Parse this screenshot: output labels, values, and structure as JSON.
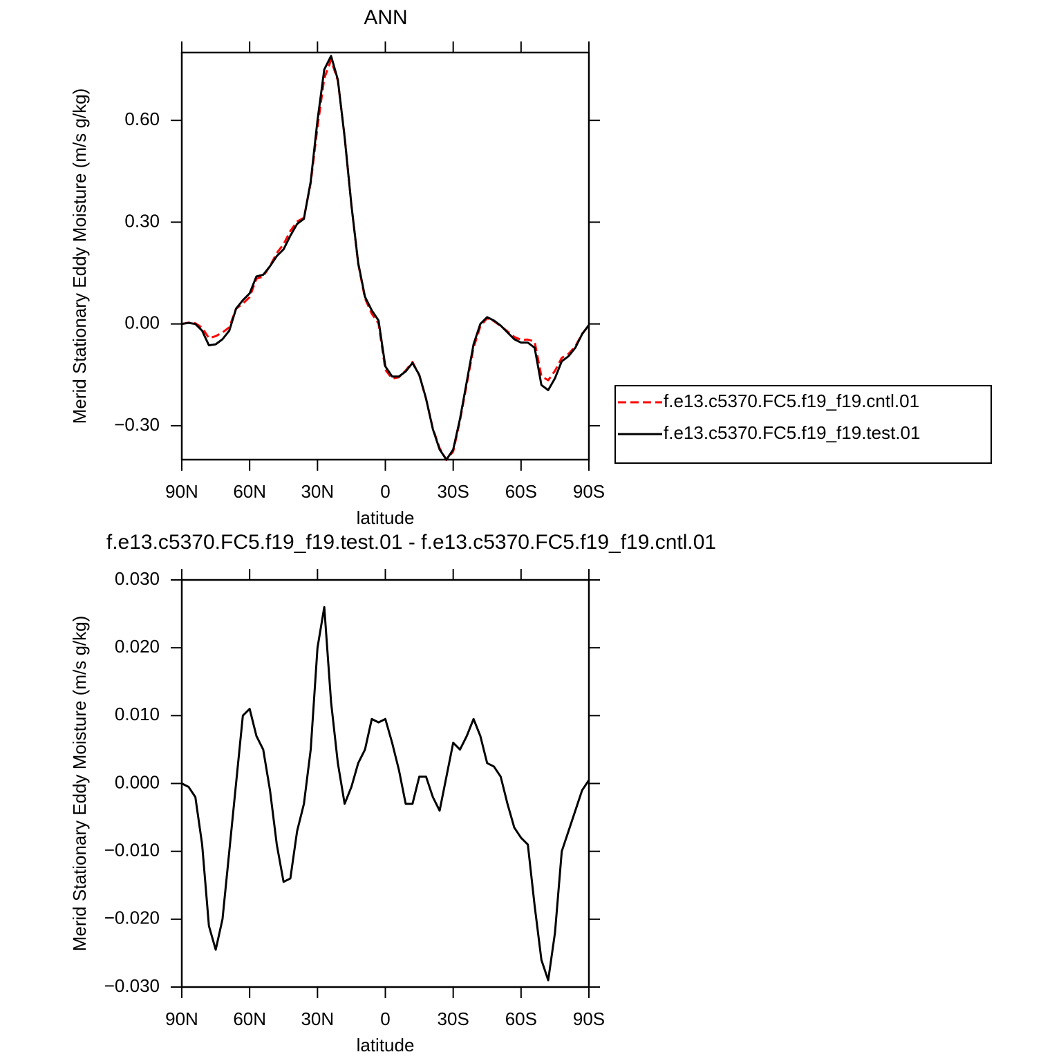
{
  "chart_data": [
    {
      "type": "line",
      "title": "ANN",
      "ylabel": "Merid Stationary Eddy Moisture (m/s g/kg)",
      "xlabel": "latitude",
      "x": [
        90,
        87,
        84,
        81,
        78,
        75,
        72,
        69,
        66,
        63,
        60,
        57,
        54,
        51,
        48,
        45,
        42,
        39,
        36,
        33,
        30,
        27,
        24,
        21,
        18,
        15,
        12,
        9,
        6,
        3,
        0,
        -3,
        -6,
        -9,
        -12,
        -15,
        -18,
        -21,
        -24,
        -27,
        -30,
        -33,
        -36,
        -39,
        -42,
        -45,
        -48,
        -51,
        -54,
        -57,
        -60,
        -63,
        -66,
        -69,
        -72,
        -75,
        -78,
        -81,
        -84,
        -87,
        -90
      ],
      "series": [
        {
          "name": "f.e13.c5370.FC5.f19_f19.cntl.01",
          "color": "#ff0000",
          "style": "dashed",
          "values": [
            0.0,
            0.004,
            0.002,
            -0.011,
            -0.042,
            -0.036,
            -0.025,
            -0.01,
            0.045,
            0.06,
            0.079,
            0.133,
            0.14,
            0.171,
            0.209,
            0.235,
            0.274,
            0.302,
            0.313,
            0.415,
            0.58,
            0.724,
            0.778,
            0.717,
            0.553,
            0.35,
            0.177,
            0.075,
            0.03,
            0.001,
            -0.135,
            -0.161,
            -0.157,
            -0.137,
            -0.112,
            -0.151,
            -0.221,
            -0.308,
            -0.366,
            -0.401,
            -0.376,
            -0.285,
            -0.177,
            -0.07,
            -0.007,
            0.017,
            0.008,
            -0.006,
            -0.022,
            -0.038,
            -0.047,
            -0.046,
            -0.052,
            -0.154,
            -0.166,
            -0.138,
            -0.1,
            -0.088,
            -0.066,
            -0.029,
            -0.004
          ]
        },
        {
          "name": "f.e13.c5370.FC5.f19_f19.test.01",
          "color": "#000000",
          "style": "solid",
          "values": [
            0.0,
            0.003,
            0.0,
            -0.02,
            -0.063,
            -0.06,
            -0.045,
            -0.02,
            0.045,
            0.07,
            0.09,
            0.14,
            0.145,
            0.17,
            0.2,
            0.22,
            0.26,
            0.295,
            0.31,
            0.42,
            0.6,
            0.75,
            0.79,
            0.72,
            0.55,
            0.35,
            0.18,
            0.08,
            0.04,
            0.01,
            -0.125,
            -0.155,
            -0.155,
            -0.14,
            -0.115,
            -0.15,
            -0.22,
            -0.31,
            -0.37,
            -0.4,
            -0.37,
            -0.28,
            -0.17,
            -0.06,
            0.0,
            0.02,
            0.01,
            -0.005,
            -0.025,
            -0.045,
            -0.055,
            -0.055,
            -0.07,
            -0.18,
            -0.195,
            -0.16,
            -0.11,
            -0.095,
            -0.07,
            -0.03,
            -0.003
          ]
        }
      ],
      "xlim": [
        90,
        -90
      ],
      "xticks": [
        {
          "value": 90,
          "label": "90N"
        },
        {
          "value": 60,
          "label": "60N"
        },
        {
          "value": 30,
          "label": "30N"
        },
        0,
        {
          "value": -30,
          "label": "30S"
        },
        {
          "value": -60,
          "label": "60S"
        },
        {
          "value": -90,
          "label": "90S"
        }
      ],
      "ylim": [
        -0.4,
        0.8
      ],
      "yticks": [
        {
          "value": -0.3,
          "label": "−0.30"
        },
        {
          "value": 0.0,
          "label": "0.00"
        },
        {
          "value": 0.3,
          "label": "0.30"
        },
        {
          "value": 0.6,
          "label": "0.60"
        }
      ],
      "legend": "right"
    },
    {
      "type": "line",
      "title": "f.e13.c5370.FC5.f19_f19.test.01 - f.e13.c5370.FC5.f19_f19.cntl.01",
      "ylabel": "Merid Stationary Eddy Moisture (m/s g/kg)",
      "xlabel": "latitude",
      "x": [
        90,
        87,
        84,
        81,
        78,
        75,
        72,
        69,
        66,
        63,
        60,
        57,
        54,
        51,
        48,
        45,
        42,
        39,
        36,
        33,
        30,
        27,
        24,
        21,
        18,
        15,
        12,
        9,
        6,
        3,
        0,
        -3,
        -6,
        -9,
        -12,
        -15,
        -18,
        -21,
        -24,
        -27,
        -30,
        -33,
        -36,
        -39,
        -42,
        -45,
        -48,
        -51,
        -54,
        -57,
        -60,
        -63,
        -66,
        -69,
        -72,
        -75,
        -78,
        -81,
        -84,
        -87,
        -90
      ],
      "series": [
        {
          "color": "#000000",
          "style": "solid",
          "values": [
            0.0,
            -0.0005,
            -0.002,
            -0.009,
            -0.021,
            -0.0245,
            -0.02,
            -0.01,
            0.0,
            0.01,
            0.011,
            0.007,
            0.005,
            -0.001,
            -0.009,
            -0.0145,
            -0.014,
            -0.007,
            -0.003,
            0.005,
            0.02,
            0.026,
            0.012,
            0.003,
            -0.003,
            -0.0005,
            0.003,
            0.005,
            0.0095,
            0.009,
            0.0095,
            0.006,
            0.002,
            -0.003,
            -0.003,
            0.001,
            0.001,
            -0.002,
            -0.004,
            0.001,
            0.006,
            0.005,
            0.007,
            0.0095,
            0.007,
            0.003,
            0.0025,
            0.001,
            -0.003,
            -0.0065,
            -0.008,
            -0.009,
            -0.018,
            -0.026,
            -0.029,
            -0.022,
            -0.01,
            -0.007,
            -0.004,
            -0.001,
            0.0005
          ]
        }
      ],
      "xlim": [
        90,
        -90
      ],
      "xticks": [
        {
          "value": 90,
          "label": "90N"
        },
        {
          "value": 60,
          "label": "60N"
        },
        {
          "value": 30,
          "label": "30N"
        },
        0,
        {
          "value": -30,
          "label": "30S"
        },
        {
          "value": -60,
          "label": "60S"
        },
        {
          "value": -90,
          "label": "90S"
        }
      ],
      "ylim": [
        -0.03,
        0.03
      ],
      "yticks": [
        {
          "value": -0.03,
          "label": "−0.030"
        },
        {
          "value": -0.02,
          "label": "−0.020"
        },
        {
          "value": -0.01,
          "label": "−0.010"
        },
        {
          "value": 0.0,
          "label": "0.000"
        },
        {
          "value": 0.01,
          "label": "0.010"
        },
        {
          "value": 0.02,
          "label": "0.020"
        },
        {
          "value": 0.03,
          "label": "0.030"
        }
      ]
    }
  ]
}
